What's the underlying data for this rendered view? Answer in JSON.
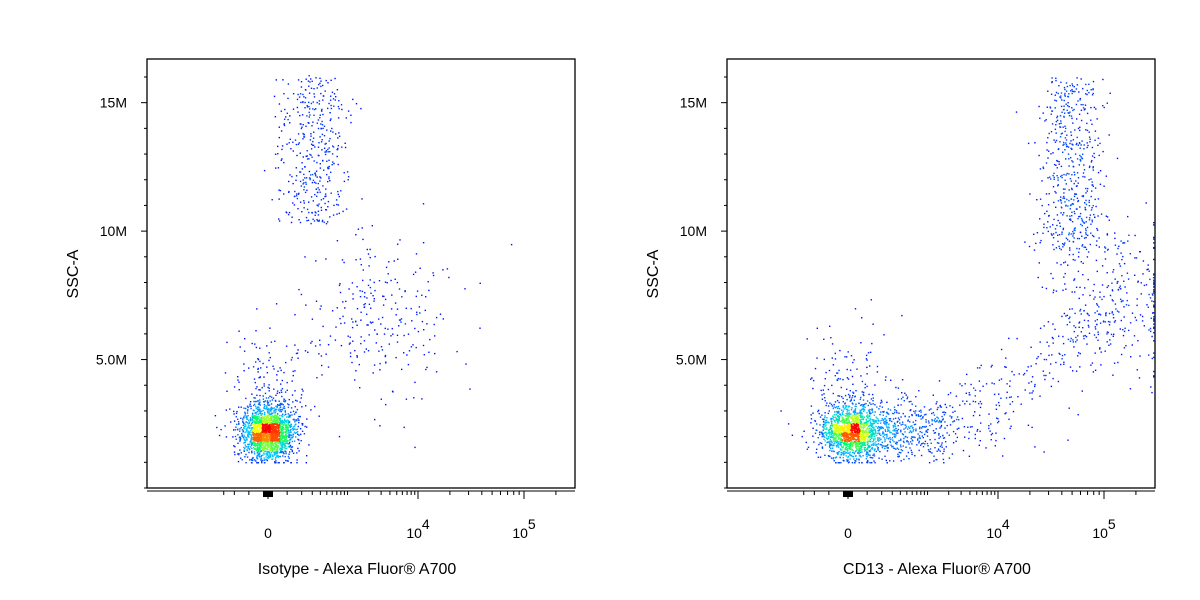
{
  "chart_data": [
    {
      "type": "scatter",
      "subtype": "flow-cytometry-density-dot-plot",
      "title": "",
      "xlabel": "Isotype - Alexa Fluor® A700",
      "ylabel": "SSC-A",
      "x_scale": "biexponential",
      "xlim": [
        -300,
        250000
      ],
      "ylim": [
        0,
        16700000
      ],
      "x_tick_labels": [
        "0",
        "10^4",
        "10^5"
      ],
      "x_ticks": [
        0,
        10000,
        100000
      ],
      "y_tick_labels": [
        "5.0M",
        "10M",
        "15M"
      ],
      "y_ticks": [
        5000000,
        10000000,
        15000000
      ],
      "density_colors": [
        "#0000ff",
        "#00c8ff",
        "#00ff66",
        "#ffff00",
        "#ff0000"
      ],
      "populations": [
        {
          "label": "",
          "x_center": 0,
          "y_center": 2000000,
          "events": 2100,
          "shape": "dense-core"
        },
        {
          "label": "",
          "x_center": 300,
          "y_center": 13000000,
          "events": 420,
          "shape": "vertical-cloud"
        },
        {
          "label": "",
          "x_center": 3000,
          "y_center": 6500000,
          "events": 260,
          "shape": "diffuse"
        }
      ]
    },
    {
      "type": "scatter",
      "subtype": "flow-cytometry-density-dot-plot",
      "title": "",
      "xlabel": "CD13 - Alexa Fluor® A700",
      "ylabel": "SSC-A",
      "x_scale": "biexponential",
      "xlim": [
        -300,
        250000
      ],
      "ylim": [
        0,
        16700000
      ],
      "x_tick_labels": [
        "0",
        "10^4",
        "10^5"
      ],
      "x_ticks": [
        0,
        10000,
        100000
      ],
      "y_tick_labels": [
        "5.0M",
        "10M",
        "15M"
      ],
      "y_ticks": [
        5000000,
        10000000,
        15000000
      ],
      "density_colors": [
        "#0000ff",
        "#00c8ff",
        "#00ff66",
        "#ffff00",
        "#ff0000"
      ],
      "populations": [
        {
          "label": "",
          "x_center": 0,
          "y_center": 2000000,
          "events": 2100,
          "shape": "dense-core-right-tail"
        },
        {
          "label": "",
          "x_center": 50000,
          "y_center": 12000000,
          "events": 520,
          "shape": "vertical-cloud"
        },
        {
          "label": "",
          "x_center": 100000,
          "y_center": 7500000,
          "events": 260,
          "shape": "diffuse"
        },
        {
          "label": "",
          "x_center": 15000,
          "y_center": 3500000,
          "events": 260,
          "shape": "diagonal-bridge"
        }
      ]
    }
  ]
}
